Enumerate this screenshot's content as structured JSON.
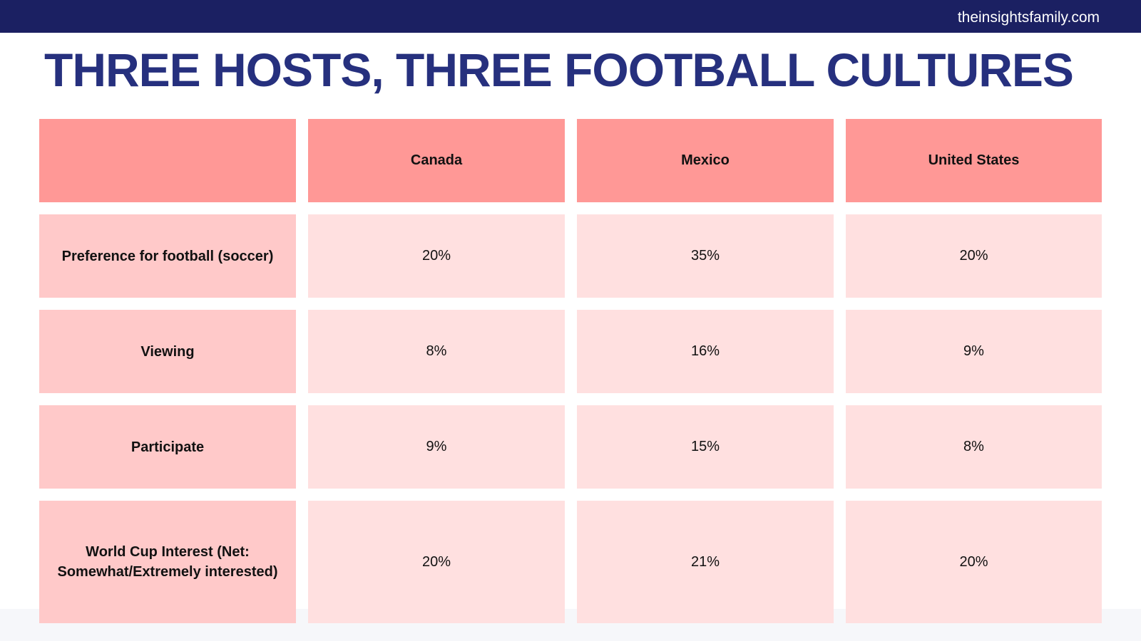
{
  "header": {
    "site": "theinsightsfamily.com",
    "background_color": "#1b2062"
  },
  "title": "THREE HOSTS, THREE FOOTBALL CULTURES",
  "colors": {
    "title": "#26307e",
    "header_cell": "#ff9896",
    "label_cell": "#ffc9c9",
    "value_cell": "#ffe0e0"
  },
  "table": {
    "columns": [
      "",
      "Canada",
      "Mexico",
      "United States"
    ],
    "rows": [
      {
        "label": "Preference for football (soccer)",
        "values": [
          "20%",
          "35%",
          "20%"
        ]
      },
      {
        "label": "Viewing",
        "values": [
          "8%",
          "16%",
          "9%"
        ]
      },
      {
        "label": "Participate",
        "values": [
          "9%",
          "15%",
          "8%"
        ]
      },
      {
        "label": "World Cup Interest (Net: Somewhat/Extremely interested)",
        "values": [
          "20%",
          "21%",
          "20%"
        ]
      }
    ]
  }
}
